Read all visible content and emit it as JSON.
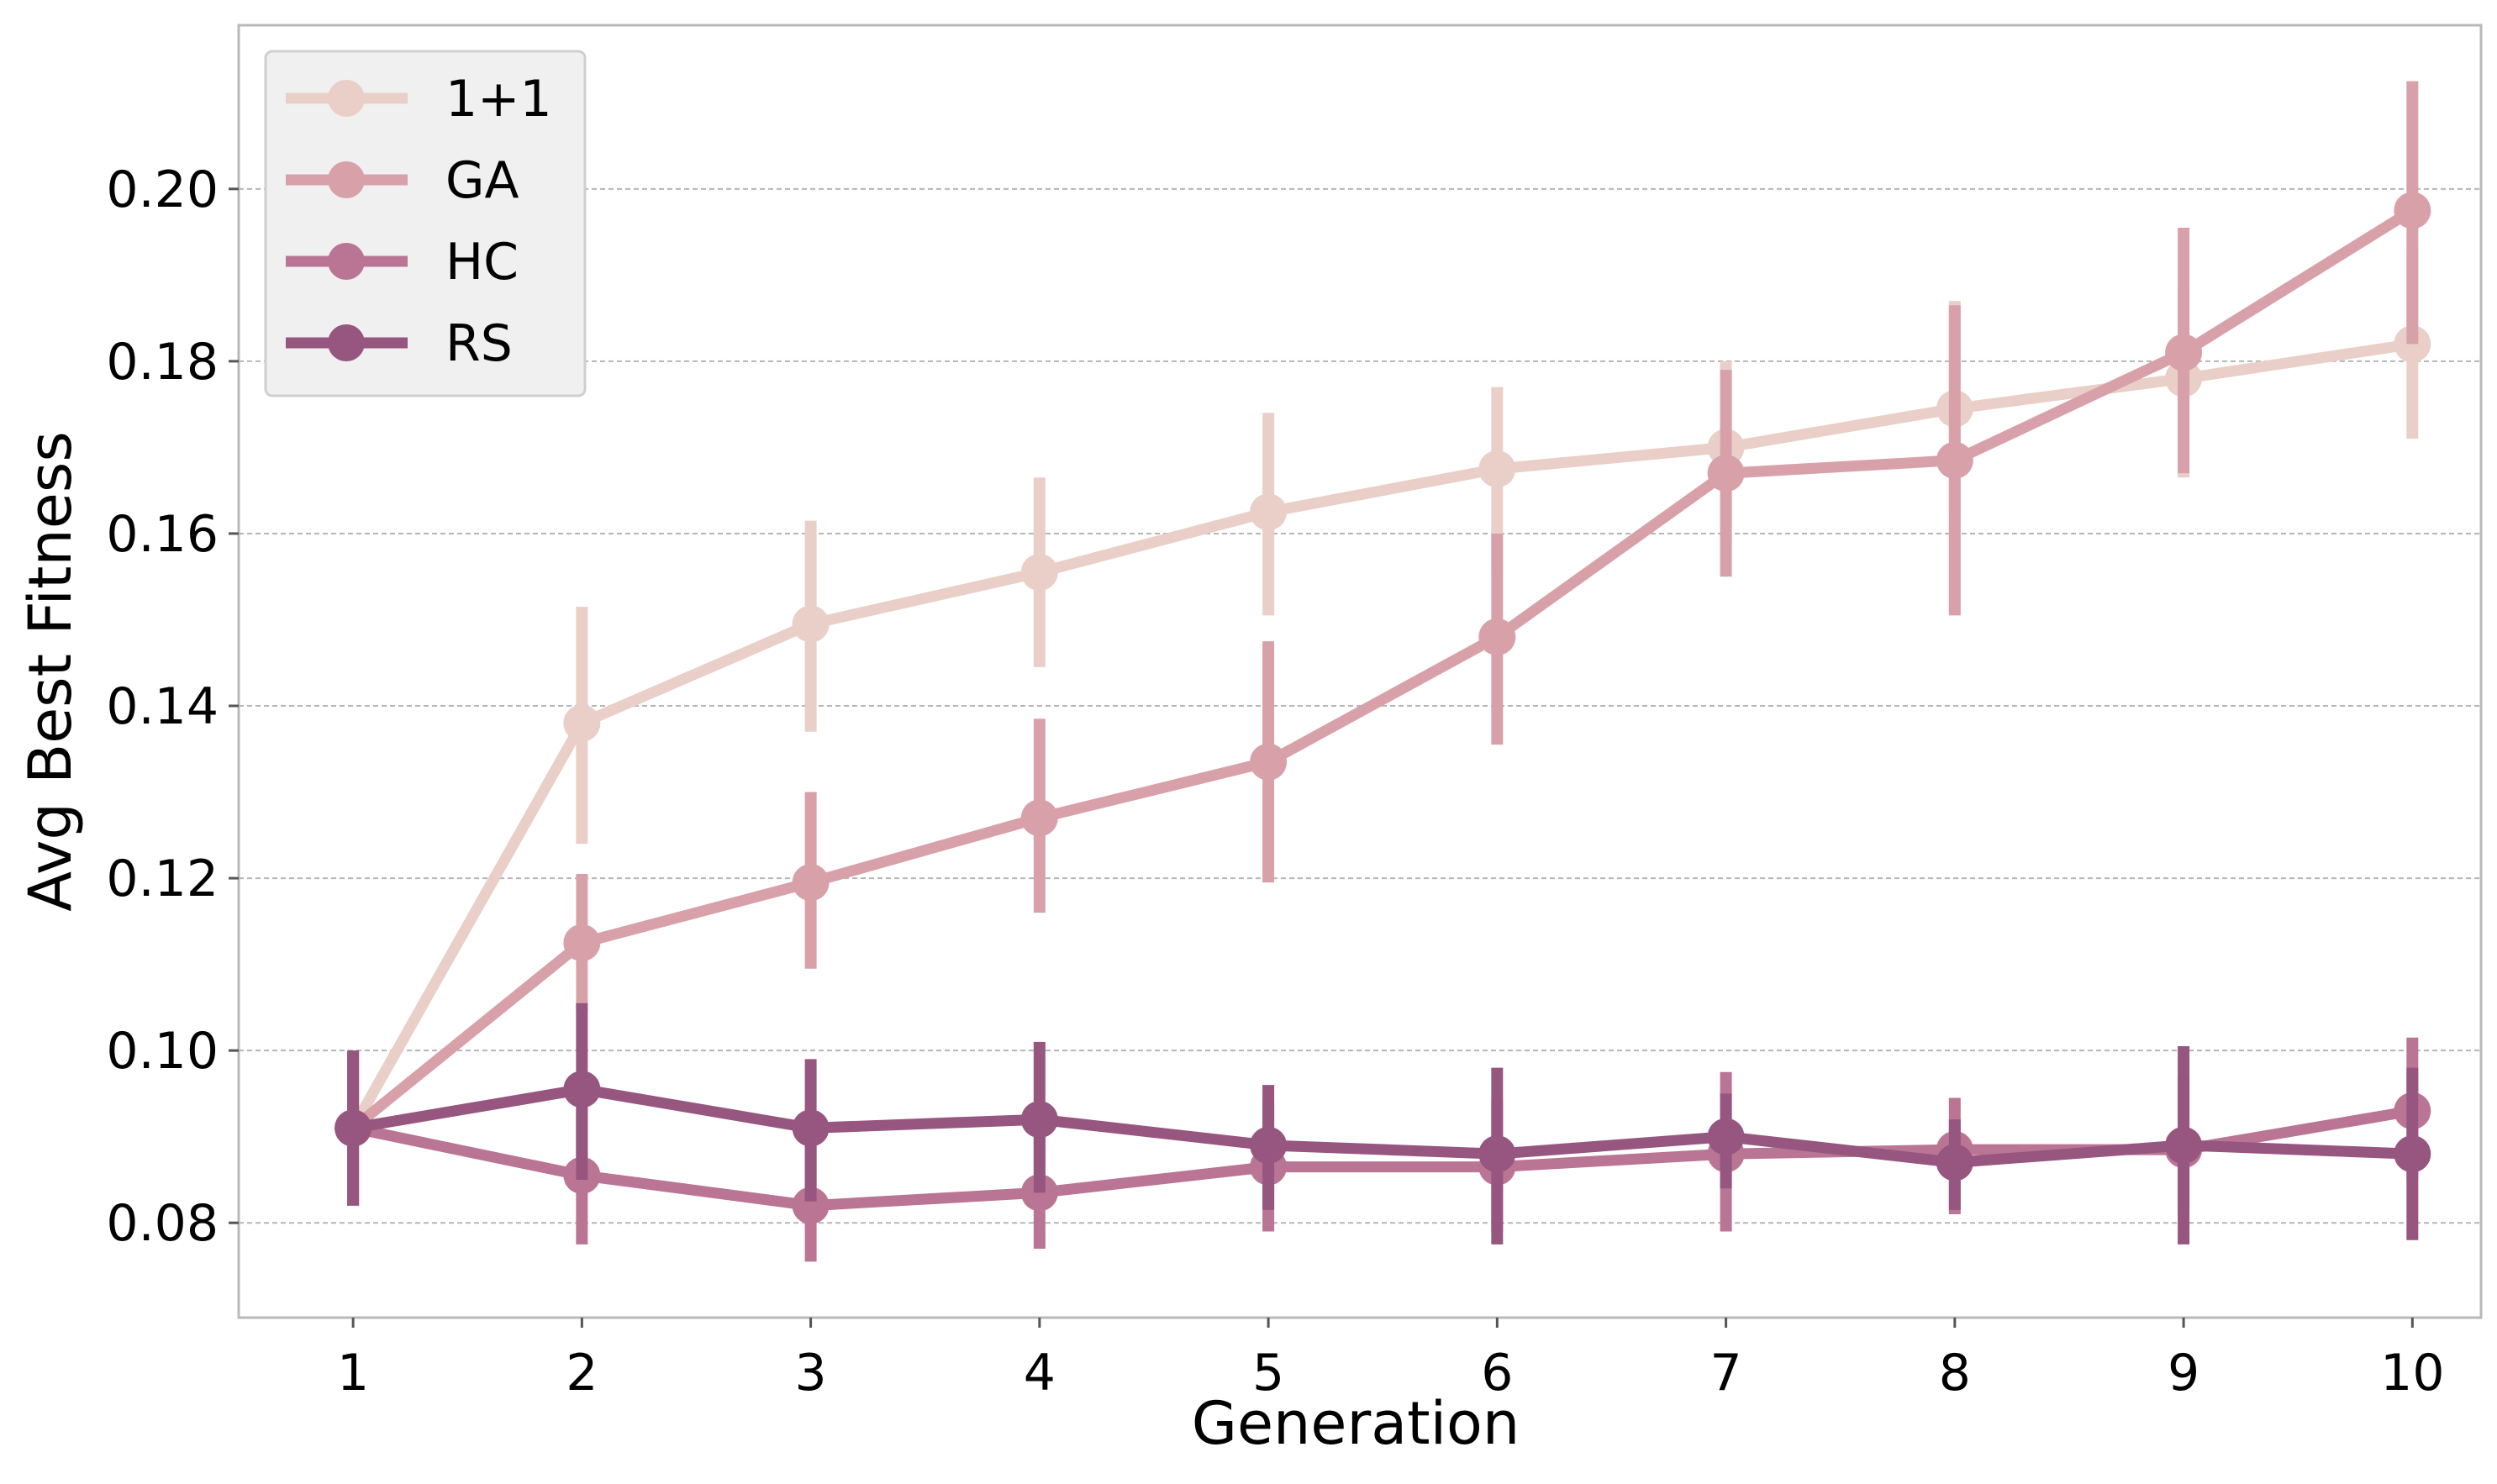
{
  "chart_data": {
    "type": "line",
    "xlabel": "Generation",
    "ylabel": "Avg Best Fitness",
    "x": [
      1,
      2,
      3,
      4,
      5,
      6,
      7,
      8,
      9,
      10
    ],
    "xlim": [
      0.5,
      10.3
    ],
    "ylim": [
      0.069,
      0.219
    ],
    "yticks": [
      0.08,
      0.1,
      0.12,
      0.14,
      0.16,
      0.18,
      0.2
    ],
    "ytick_labels": [
      "0.08",
      "0.10",
      "0.12",
      "0.14",
      "0.16",
      "0.18",
      "0.20"
    ],
    "grid": "horizontal dashed",
    "legend_position": "top-left",
    "series": [
      {
        "name": "1+1",
        "color": "#e9cfc8",
        "values": [
          0.091,
          0.138,
          0.1495,
          0.1555,
          0.1625,
          0.1675,
          0.17,
          0.1745,
          0.178,
          0.182
        ],
        "err_low": [
          0.082,
          0.124,
          0.137,
          0.1445,
          0.1505,
          0.1555,
          0.1585,
          0.1625,
          0.1665,
          0.171
        ],
        "err_high": [
          0.1,
          0.1515,
          0.1615,
          0.1665,
          0.174,
          0.177,
          0.18,
          0.187,
          0.1885,
          0.193
        ]
      },
      {
        "name": "GA",
        "color": "#d8a1aa",
        "values": [
          0.091,
          0.1125,
          0.1195,
          0.127,
          0.1335,
          0.148,
          0.167,
          0.1685,
          0.181,
          0.1975
        ],
        "err_low": [
          0.082,
          0.1045,
          0.1095,
          0.116,
          0.1195,
          0.1355,
          0.155,
          0.1505,
          0.167,
          0.182
        ],
        "err_high": [
          0.1,
          0.1205,
          0.13,
          0.1385,
          0.1475,
          0.16,
          0.179,
          0.1865,
          0.1955,
          0.2125
        ]
      },
      {
        "name": "HC",
        "color": "#b97593",
        "values": [
          0.091,
          0.0855,
          0.082,
          0.0835,
          0.0865,
          0.0865,
          0.088,
          0.0885,
          0.0885,
          0.093
        ],
        "err_low": [
          0.082,
          0.0775,
          0.0755,
          0.077,
          0.079,
          0.079,
          0.079,
          0.081,
          0.081,
          0.085
        ],
        "err_high": [
          0.1,
          0.094,
          0.089,
          0.0905,
          0.094,
          0.094,
          0.0975,
          0.0945,
          0.097,
          0.1015
        ]
      },
      {
        "name": "RS",
        "color": "#96567f",
        "values": [
          0.091,
          0.0955,
          0.091,
          0.092,
          0.089,
          0.088,
          0.09,
          0.087,
          0.089,
          0.088
        ],
        "err_low": [
          0.082,
          0.085,
          0.0825,
          0.0835,
          0.0815,
          0.0775,
          0.084,
          0.0815,
          0.0775,
          0.078
        ],
        "err_high": [
          0.1,
          0.1055,
          0.099,
          0.101,
          0.096,
          0.098,
          0.095,
          0.092,
          0.1005,
          0.098
        ]
      }
    ]
  }
}
